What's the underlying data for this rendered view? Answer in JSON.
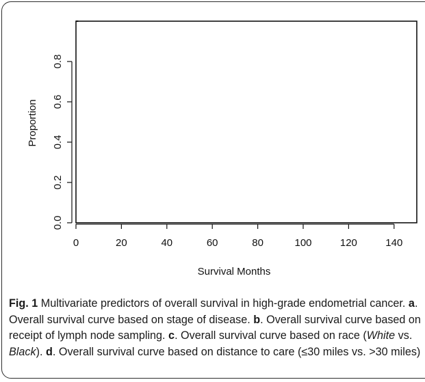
{
  "chart_data": {
    "type": "line",
    "title": "",
    "xlabel": "Survival Months",
    "ylabel": "Proportion",
    "xlim": [
      0,
      150
    ],
    "ylim": [
      0.0,
      1.0
    ],
    "x_ticks": [
      0,
      20,
      40,
      60,
      80,
      100,
      120,
      140
    ],
    "x_tick_labels": [
      "0",
      "20",
      "40",
      "60",
      "80",
      "100",
      "120",
      "140"
    ],
    "y_ticks": [
      0.0,
      0.2,
      0.4,
      0.6,
      0.8
    ],
    "y_tick_labels": [
      "0.0",
      "0.2",
      "0.4",
      "0.6",
      "0.8"
    ],
    "grid": false,
    "series": [
      {
        "x": [
          0,
          1
        ],
        "y": [
          1.0,
          1.0
        ]
      }
    ]
  },
  "caption": {
    "fig_label": "Fig. 1",
    "intro": " Multivariate predictors of overall survival in high-grade endometrial cancer. ",
    "a_label": "a",
    "a_text": ". Overall survival curve based on stage of disease. ",
    "b_label": "b",
    "b_text": ". Overall survival curve based on receipt of lymph node sampling. ",
    "c_label": "c",
    "c_text_1": ". Overall survival curve based on race (",
    "c_white": "White",
    "c_vs": " vs. ",
    "c_black": "Black",
    "c_text_2": "). ",
    "d_label": "d",
    "d_text": ". Overall survival curve based on distance to care (≤30 miles vs. >30 miles)"
  }
}
